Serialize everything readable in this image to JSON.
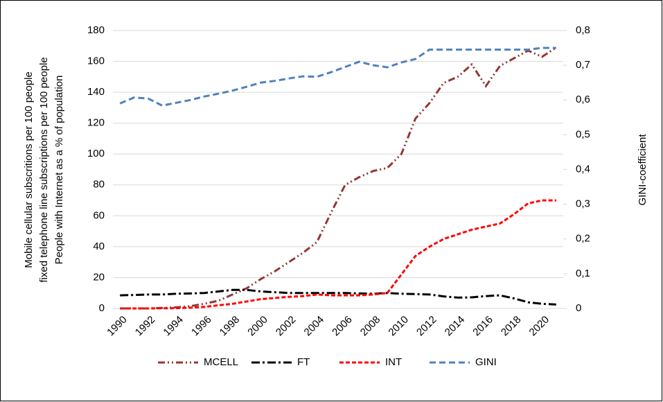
{
  "chart_data": {
    "type": "line",
    "y_label": [
      "Mobile cellular subscritions per 100 people",
      "fixed telephone line subscriptions per 100 people",
      "People with Internet as a % of population"
    ],
    "y2_label": "GINI-coefficient",
    "categories": [
      "1990",
      null,
      "1992",
      null,
      "1994",
      null,
      "1996",
      null,
      "1998",
      null,
      "2000",
      null,
      "2002",
      null,
      "2004",
      null,
      "2006",
      null,
      "2008",
      null,
      "2010",
      null,
      "2012",
      null,
      "2014",
      null,
      "2016",
      null,
      "2018",
      null,
      "2020",
      null
    ],
    "ylim": [
      0,
      180
    ],
    "yticks": [
      0,
      20,
      40,
      60,
      80,
      100,
      120,
      140,
      160,
      180
    ],
    "y2lim": [
      0,
      0.8
    ],
    "y2ticks": [
      0,
      {
        "value": 0.1,
        "label": "0,1"
      },
      {
        "value": 0.2,
        "label": "0,2"
      },
      {
        "value": 0.3,
        "label": "0,3"
      },
      {
        "value": 0.4,
        "label": "0,4"
      },
      {
        "value": 0.5,
        "label": "0,5"
      },
      {
        "value": 0.6,
        "label": "0,6"
      },
      {
        "value": 0.7,
        "label": "0,7"
      },
      {
        "value": 0.8,
        "label": "0,8"
      }
    ],
    "grid": true,
    "legend": "bottom",
    "series": [
      {
        "name": "MCELL",
        "color": "#943634",
        "dash": "dash-dot-dot",
        "values": [
          0,
          0,
          0,
          0.3,
          0.7,
          1.5,
          3,
          5,
          9,
          13,
          19,
          24,
          30,
          36,
          43,
          62,
          80,
          85,
          89,
          91,
          100,
          123,
          133,
          146,
          150,
          158,
          144,
          157,
          162,
          167,
          163,
          169
        ]
      },
      {
        "name": "FT",
        "color": "#000000",
        "dash": "dash-dot",
        "values": [
          8.5,
          8.7,
          9,
          9,
          9.5,
          9.7,
          10,
          11,
          12,
          12,
          11,
          10.5,
          10,
          10,
          10,
          10,
          10,
          9.7,
          9.5,
          10,
          9.5,
          9.3,
          9,
          7.8,
          7,
          7.2,
          8,
          8.5,
          6.5,
          4,
          3,
          2.5
        ]
      },
      {
        "name": "INT",
        "color": "#ff0000",
        "dash": "dash",
        "values": [
          0,
          0,
          0,
          0.1,
          0.2,
          0.5,
          1,
          2,
          3,
          4.5,
          6,
          6.8,
          7.5,
          8,
          9,
          8.5,
          8.5,
          8.5,
          9,
          10,
          22,
          34,
          40,
          45,
          48,
          51,
          53,
          55,
          61,
          68,
          70,
          70
        ]
      },
      {
        "name": "GINI",
        "color": "#4f81bd",
        "dash": "long-dash",
        "axis": "y2",
        "values": [
          0.59,
          0.607,
          0.604,
          0.584,
          0.592,
          0.6,
          0.61,
          0.618,
          0.627,
          0.638,
          0.65,
          0.655,
          0.662,
          0.668,
          0.667,
          0.68,
          0.695,
          0.71,
          0.7,
          0.694,
          0.708,
          0.718,
          0.745,
          0.745,
          0.745,
          0.745,
          0.745,
          0.745,
          0.745,
          0.745,
          0.75,
          0.75
        ]
      }
    ]
  }
}
